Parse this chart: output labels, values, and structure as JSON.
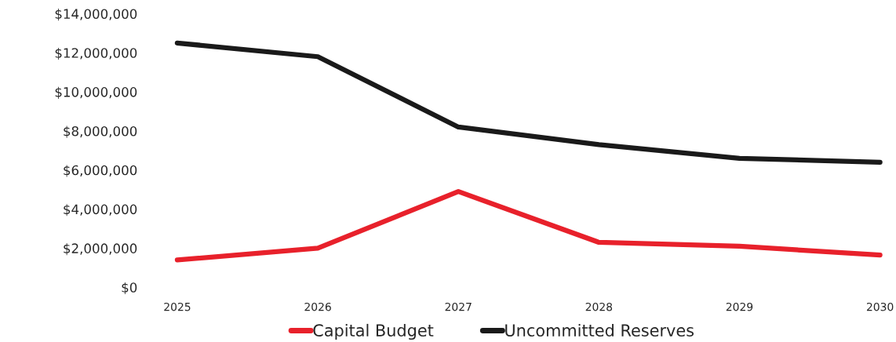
{
  "chart_data": {
    "type": "line",
    "categories": [
      "2025",
      "2026",
      "2027",
      "2028",
      "2029",
      "2030"
    ],
    "series": [
      {
        "name": "Capital Budget",
        "color": "#e8212b",
        "values": [
          1400000,
          2000000,
          4900000,
          2300000,
          2100000,
          1650000
        ]
      },
      {
        "name": "Uncommitted Reserves",
        "color": "#1a1a1a",
        "values": [
          12500000,
          11800000,
          8200000,
          7300000,
          6600000,
          6400000
        ]
      }
    ],
    "ylim": [
      0,
      14000000
    ],
    "yticks": [
      {
        "value": 0,
        "label": "$0"
      },
      {
        "value": 2000000,
        "label": "$2,000,000"
      },
      {
        "value": 4000000,
        "label": "$4,000,000"
      },
      {
        "value": 6000000,
        "label": "$6,000,000"
      },
      {
        "value": 8000000,
        "label": "$8,000,000"
      },
      {
        "value": 10000000,
        "label": "$10,000,000"
      },
      {
        "value": 12000000,
        "label": "$12,000,000"
      },
      {
        "value": 14000000,
        "label": "$14,000,000"
      }
    ],
    "legend": "bottom",
    "marker": "none",
    "line_style": "solid"
  }
}
